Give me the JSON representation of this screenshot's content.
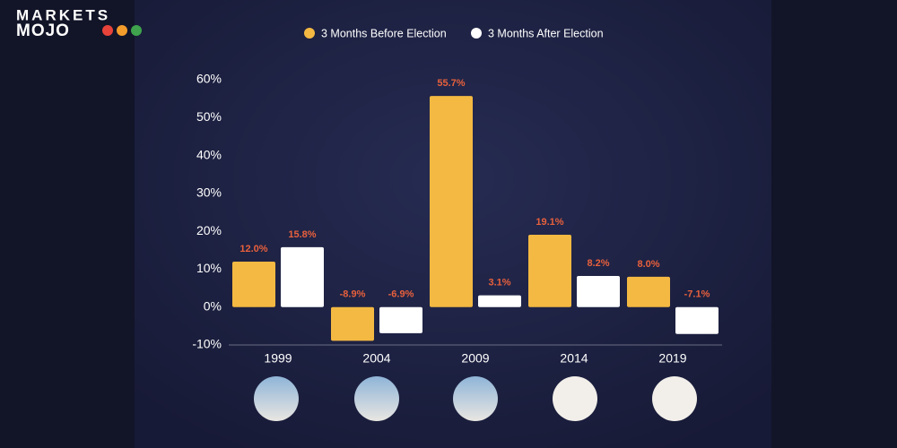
{
  "brand": {
    "line1": "MARKETS",
    "line2": "MOJO"
  },
  "chart_data": {
    "type": "bar",
    "categories": [
      "1999",
      "2004",
      "2009",
      "2014",
      "2019"
    ],
    "series": [
      {
        "name": "3 Months Before Election",
        "color": "#f4b942",
        "values": [
          12.0,
          -8.9,
          55.7,
          19.1,
          8.0
        ],
        "value_labels": [
          "12.0%",
          "-8.9%",
          "55.7%",
          "19.1%",
          "8.0%"
        ]
      },
      {
        "name": "3 Months After Election",
        "color": "#ffffff",
        "values": [
          15.8,
          -6.9,
          3.1,
          8.2,
          -7.1
        ],
        "value_labels": [
          "15.8%",
          "-6.9%",
          "3.1%",
          "8.2%",
          "-7.1%"
        ]
      }
    ],
    "ylim": [
      -10,
      60
    ],
    "yticks": [
      {
        "value": -10,
        "label": "-10%"
      },
      {
        "value": 0,
        "label": "0%"
      },
      {
        "value": 10,
        "label": "10%"
      },
      {
        "value": 20,
        "label": "20%"
      },
      {
        "value": 30,
        "label": "30%"
      },
      {
        "value": 40,
        "label": "40%"
      },
      {
        "value": 50,
        "label": "50%"
      },
      {
        "value": 60,
        "label": "60%"
      }
    ]
  }
}
